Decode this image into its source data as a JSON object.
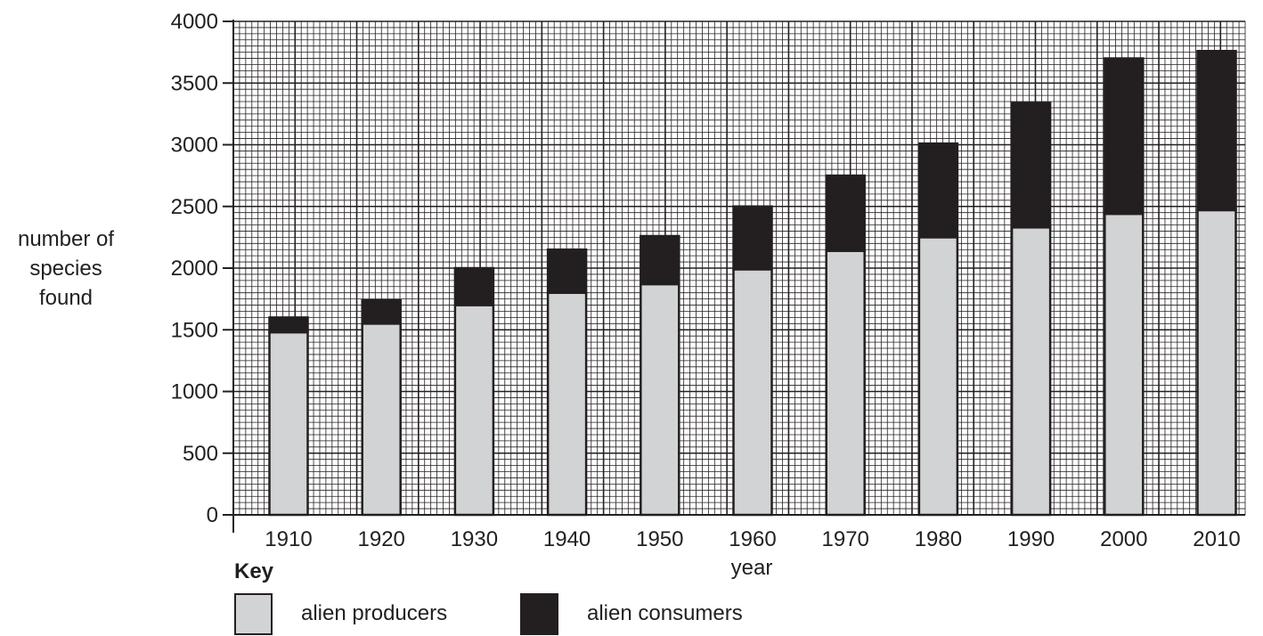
{
  "colors": {
    "producers": "#d1d3d4",
    "consumers": "#231f20",
    "grid": "#231f20",
    "outline": "#231f20"
  },
  "chart_data": {
    "type": "bar",
    "stacked": true,
    "categories": [
      "1910",
      "1920",
      "1930",
      "1940",
      "1950",
      "1960",
      "1970",
      "1980",
      "1990",
      "2000",
      "2010"
    ],
    "series": [
      {
        "name": "alien producers",
        "values": [
          1480,
          1550,
          1700,
          1800,
          1870,
          1990,
          2140,
          2250,
          2330,
          2440,
          2470
        ]
      },
      {
        "name": "alien consumers",
        "values": [
          120,
          190,
          300,
          350,
          390,
          510,
          610,
          760,
          1010,
          1260,
          1290
        ]
      }
    ],
    "totals": [
      1600,
      1740,
      2000,
      2150,
      2260,
      2500,
      2750,
      3010,
      3340,
      3700,
      3760
    ],
    "xlabel": "year",
    "ylabel": "number of species found",
    "ylabel_lines": [
      "number of",
      "species",
      "found"
    ],
    "ylim": [
      0,
      4000
    ],
    "yticks": [
      0,
      500,
      1000,
      1500,
      2000,
      2500,
      3000,
      3500,
      4000
    ],
    "grid": true,
    "legend": {
      "title": "Key",
      "position": "bottom-left"
    }
  }
}
